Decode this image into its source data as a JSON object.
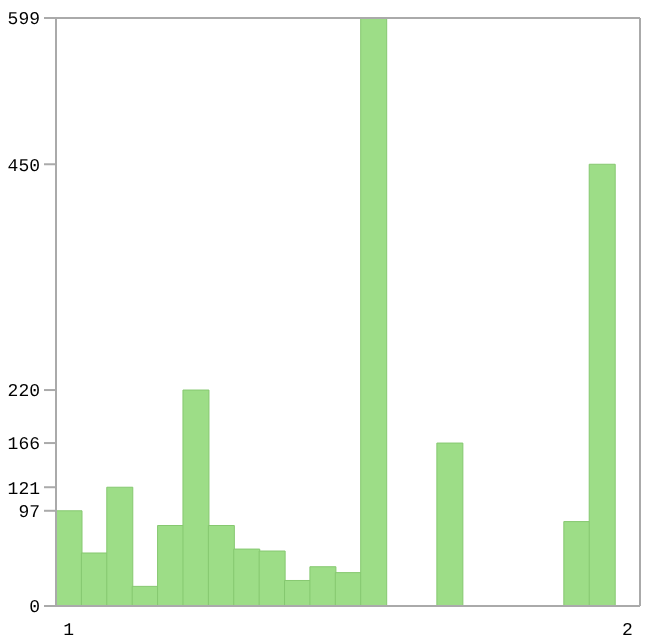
{
  "chart_data": {
    "type": "bar",
    "categories": [
      "1",
      null,
      null,
      null,
      null,
      null,
      null,
      null,
      null,
      null,
      null,
      null,
      null,
      null,
      null,
      null,
      null,
      null,
      null,
      null,
      null,
      null,
      "2"
    ],
    "values": [
      97,
      54,
      121,
      20,
      82,
      220,
      82,
      58,
      56,
      26,
      40,
      34,
      599,
      0,
      0,
      166,
      0,
      0,
      0,
      0,
      86,
      450,
      0
    ],
    "color": "#9ddd87",
    "ylim": [
      0,
      599
    ],
    "yticks": [
      0,
      97,
      121,
      166,
      220,
      450,
      599
    ]
  }
}
